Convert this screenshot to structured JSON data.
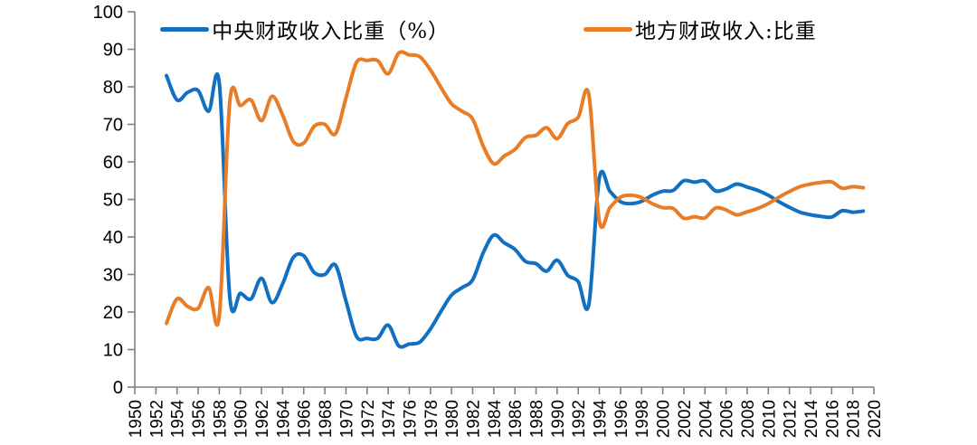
{
  "chart_data": {
    "type": "line",
    "title": "",
    "xlabel": "",
    "ylabel": "",
    "grid": false,
    "smooth": true,
    "legend_position": "top-center",
    "x_axis": {
      "min": 1950,
      "max": 2020,
      "tick_step": 2
    },
    "y_axis": {
      "min": 0,
      "max": 100,
      "tick_step": 10
    },
    "x_tick_labels": [
      1950,
      1952,
      1954,
      1956,
      1958,
      1960,
      1962,
      1964,
      1966,
      1968,
      1970,
      1972,
      1974,
      1976,
      1978,
      1980,
      1982,
      1984,
      1986,
      1988,
      1990,
      1992,
      1994,
      1996,
      1998,
      2000,
      2002,
      2004,
      2006,
      2008,
      2010,
      2012,
      2014,
      2016,
      2018,
      2020
    ],
    "y_tick_labels": [
      0,
      10,
      20,
      30,
      40,
      50,
      60,
      70,
      80,
      90,
      100
    ],
    "x": [
      1953,
      1954,
      1955,
      1956,
      1957,
      1958,
      1959,
      1960,
      1961,
      1962,
      1963,
      1964,
      1965,
      1966,
      1967,
      1968,
      1969,
      1970,
      1971,
      1972,
      1973,
      1974,
      1975,
      1976,
      1977,
      1978,
      1979,
      1980,
      1981,
      1982,
      1983,
      1984,
      1985,
      1986,
      1987,
      1988,
      1989,
      1990,
      1991,
      1992,
      1993,
      1994,
      1995,
      1996,
      1997,
      1998,
      1999,
      2000,
      2001,
      2002,
      2003,
      2004,
      2005,
      2006,
      2007,
      2008,
      2009,
      2010,
      2011,
      2012,
      2013,
      2014,
      2015,
      2016,
      2017,
      2018,
      2019
    ],
    "series": [
      {
        "name": "中央财政收入比重（%）",
        "color": "#1170C2",
        "values": [
          83.0,
          76.5,
          78.5,
          79.0,
          73.5,
          81.0,
          24.0,
          25.0,
          23.5,
          29.0,
          22.5,
          27.5,
          34.5,
          35.0,
          30.5,
          30.0,
          32.5,
          23.0,
          13.5,
          13.0,
          13.0,
          16.5,
          11.0,
          11.5,
          12.0,
          15.5,
          20.2,
          24.5,
          26.5,
          28.6,
          35.8,
          40.5,
          38.4,
          36.7,
          33.5,
          32.9,
          30.9,
          33.8,
          29.8,
          28.1,
          22.0,
          55.7,
          52.2,
          49.4,
          48.9,
          49.5,
          51.1,
          52.2,
          52.4,
          55.0,
          54.6,
          54.9,
          52.3,
          52.8,
          54.1,
          53.3,
          52.4,
          51.1,
          49.4,
          47.9,
          46.6,
          45.9,
          45.5,
          45.3,
          47.0,
          46.6,
          46.9
        ]
      },
      {
        "name": "地方财政收入:比重",
        "color": "#E87D26",
        "values": [
          17.0,
          23.5,
          21.5,
          21.0,
          26.5,
          19.0,
          76.0,
          75.0,
          76.5,
          71.0,
          77.5,
          72.5,
          65.5,
          65.0,
          69.5,
          70.0,
          67.5,
          77.0,
          86.5,
          87.0,
          87.0,
          83.5,
          89.0,
          88.5,
          88.0,
          84.5,
          79.8,
          75.5,
          73.5,
          71.4,
          64.2,
          59.5,
          61.6,
          63.3,
          66.5,
          67.1,
          69.1,
          66.2,
          70.2,
          71.9,
          78.0,
          44.3,
          47.8,
          50.6,
          51.1,
          50.5,
          48.9,
          47.8,
          47.6,
          45.0,
          45.4,
          45.1,
          47.7,
          47.2,
          45.9,
          46.7,
          47.6,
          48.9,
          50.6,
          52.1,
          53.4,
          54.1,
          54.5,
          54.7,
          53.0,
          53.4,
          53.1
        ]
      }
    ],
    "colors": {
      "axis": "#808080",
      "tick_label": "#000000",
      "background": "#ffffff"
    }
  }
}
